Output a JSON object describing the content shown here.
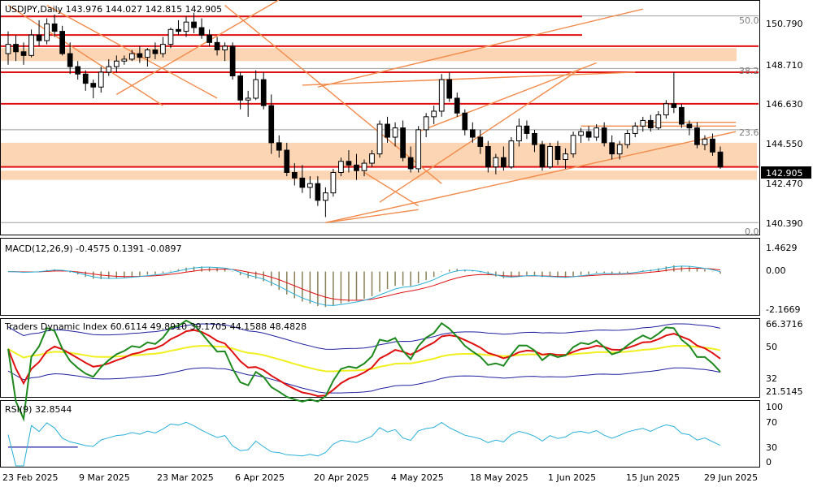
{
  "window": {
    "symbol": "USDJPY",
    "timeframe": "Daily",
    "ohlc": "143.976 144.027 142.815 142.905"
  },
  "chart_data": [
    {
      "type": "candlestick",
      "title": "USDJPY,Daily  143.976 144.027 142.815 142.905",
      "price_ticks": [
        "150.790",
        "148.710",
        "146.630",
        "144.550",
        "142.470",
        "140.390"
      ],
      "current_price": "142.905",
      "ylim": [
        139.3,
        151.8
      ],
      "x_labels": [
        "23 Feb 2025",
        "9 Mar 2025",
        "23 Mar 2025",
        "6 Apr 2025",
        "20 Apr 2025",
        "4 May 2025",
        "18 May 2025",
        "1 Jun 2025",
        "15 Jun 2025",
        "29 Jun 2025"
      ],
      "fib_labels": [
        "50.0",
        "38.2",
        "23.6",
        "0.0"
      ],
      "fib_levels": [
        151.03,
        148.2,
        144.9,
        139.9
      ],
      "support_resistance": [
        151.0,
        150.0,
        149.4,
        148.0,
        146.3,
        142.9
      ],
      "zones": [
        [
          148.6,
          149.3
        ],
        [
          142.9,
          144.2
        ],
        [
          142.2,
          142.7
        ]
      ],
      "candles": [
        [
          149.0,
          150.2,
          148.4,
          149.5
        ],
        [
          149.5,
          150.0,
          148.6,
          149.1
        ],
        [
          149.1,
          149.6,
          148.4,
          148.9
        ],
        [
          148.9,
          150.3,
          148.8,
          150.0
        ],
        [
          150.0,
          150.8,
          149.4,
          149.7
        ],
        [
          149.7,
          150.9,
          149.5,
          150.6
        ],
        [
          150.6,
          151.1,
          149.9,
          150.2
        ],
        [
          150.2,
          150.5,
          148.9,
          149.0
        ],
        [
          149.0,
          149.6,
          147.9,
          148.3
        ],
        [
          148.3,
          148.6,
          147.6,
          147.9
        ],
        [
          147.9,
          148.1,
          147.0,
          147.4
        ],
        [
          147.4,
          147.6,
          146.6,
          147.2
        ],
        [
          147.2,
          148.3,
          146.9,
          148.0
        ],
        [
          148.0,
          148.7,
          147.8,
          148.3
        ],
        [
          148.3,
          148.9,
          148.0,
          148.6
        ],
        [
          148.6,
          148.9,
          148.4,
          148.7
        ],
        [
          148.7,
          149.2,
          148.6,
          149.0
        ],
        [
          149.0,
          149.4,
          148.5,
          148.8
        ],
        [
          148.8,
          149.3,
          148.3,
          149.2
        ],
        [
          149.2,
          149.6,
          148.7,
          149.0
        ],
        [
          149.0,
          149.9,
          148.8,
          149.5
        ],
        [
          149.5,
          150.4,
          149.3,
          150.3
        ],
        [
          150.3,
          150.8,
          150.0,
          150.2
        ],
        [
          150.2,
          151.0,
          149.9,
          150.7
        ],
        [
          150.7,
          151.2,
          150.1,
          150.4
        ],
        [
          150.4,
          150.9,
          149.8,
          150.0
        ],
        [
          150.0,
          150.3,
          149.4,
          149.6
        ],
        [
          149.6,
          149.9,
          148.9,
          149.2
        ],
        [
          149.2,
          149.6,
          148.6,
          149.4
        ],
        [
          149.4,
          149.6,
          147.6,
          147.8
        ],
        [
          147.8,
          148.0,
          146.0,
          146.5
        ],
        [
          146.5,
          147.0,
          145.6,
          146.6
        ],
        [
          146.6,
          148.1,
          146.5,
          147.6
        ],
        [
          147.6,
          148.0,
          146.0,
          146.2
        ],
        [
          146.2,
          146.8,
          143.6,
          144.2
        ],
        [
          144.2,
          144.6,
          143.4,
          143.8
        ],
        [
          143.8,
          144.2,
          142.4,
          142.6
        ],
        [
          142.6,
          143.1,
          141.9,
          142.3
        ],
        [
          142.3,
          143.0,
          141.5,
          141.8
        ],
        [
          141.8,
          142.4,
          141.2,
          142.0
        ],
        [
          142.0,
          142.4,
          140.8,
          141.1
        ],
        [
          141.1,
          141.8,
          140.2,
          141.5
        ],
        [
          141.5,
          142.8,
          141.3,
          142.6
        ],
        [
          142.6,
          143.4,
          142.4,
          143.2
        ],
        [
          143.2,
          143.8,
          142.6,
          143.0
        ],
        [
          143.0,
          143.6,
          142.2,
          142.7
        ],
        [
          142.7,
          143.3,
          142.4,
          143.1
        ],
        [
          143.1,
          143.8,
          142.9,
          143.6
        ],
        [
          143.6,
          145.4,
          143.4,
          145.2
        ],
        [
          145.2,
          145.6,
          144.2,
          144.5
        ],
        [
          144.5,
          145.3,
          144.0,
          145.0
        ],
        [
          145.0,
          145.4,
          143.2,
          143.4
        ],
        [
          143.4,
          144.0,
          142.6,
          142.8
        ],
        [
          142.8,
          145.1,
          142.6,
          144.9
        ],
        [
          144.9,
          145.8,
          144.5,
          145.6
        ],
        [
          145.6,
          146.2,
          145.2,
          145.9
        ],
        [
          145.9,
          147.9,
          145.6,
          147.6
        ],
        [
          147.6,
          148.0,
          146.4,
          146.6
        ],
        [
          146.6,
          146.9,
          145.6,
          145.8
        ],
        [
          145.8,
          146.0,
          144.6,
          144.9
        ],
        [
          144.9,
          145.3,
          144.2,
          144.5
        ],
        [
          144.5,
          144.9,
          143.6,
          144.0
        ],
        [
          144.0,
          144.3,
          142.6,
          142.9
        ],
        [
          142.9,
          143.6,
          142.5,
          143.4
        ],
        [
          143.4,
          144.0,
          142.7,
          142.9
        ],
        [
          142.9,
          144.5,
          142.8,
          144.3
        ],
        [
          144.3,
          145.5,
          144.0,
          145.1
        ],
        [
          145.1,
          145.4,
          144.4,
          144.7
        ],
        [
          144.7,
          144.9,
          143.7,
          144.1
        ],
        [
          144.1,
          144.3,
          142.7,
          142.9
        ],
        [
          142.9,
          144.2,
          142.8,
          144.0
        ],
        [
          144.0,
          144.3,
          143.0,
          143.3
        ],
        [
          143.3,
          143.9,
          142.8,
          143.6
        ],
        [
          143.6,
          144.8,
          143.4,
          144.6
        ],
        [
          144.6,
          145.0,
          144.2,
          144.8
        ],
        [
          144.8,
          145.1,
          144.3,
          144.5
        ],
        [
          144.5,
          145.2,
          144.3,
          145.0
        ],
        [
          145.0,
          145.3,
          144.0,
          144.2
        ],
        [
          144.2,
          144.6,
          143.3,
          143.6
        ],
        [
          143.6,
          144.3,
          143.3,
          144.1
        ],
        [
          144.1,
          144.9,
          143.9,
          144.7
        ],
        [
          144.7,
          145.3,
          144.5,
          145.1
        ],
        [
          145.1,
          145.6,
          144.8,
          145.4
        ],
        [
          145.4,
          145.7,
          144.8,
          145.0
        ],
        [
          145.0,
          145.9,
          144.9,
          145.7
        ],
        [
          145.7,
          146.5,
          145.5,
          146.3
        ],
        [
          146.3,
          148.0,
          145.8,
          146.1
        ],
        [
          146.1,
          146.3,
          145.0,
          145.2
        ],
        [
          145.2,
          145.4,
          144.6,
          145.0
        ],
        [
          145.0,
          145.3,
          143.9,
          144.1
        ],
        [
          144.1,
          144.6,
          143.8,
          144.4
        ],
        [
          144.4,
          144.7,
          143.5,
          143.7
        ],
        [
          143.7,
          144.0,
          142.8,
          142.9
        ]
      ]
    },
    {
      "type": "line",
      "title": "MACD(12,26,9) -0.4575 0.1391 -0.0897",
      "ticks": [
        "1.4629",
        "0.00",
        "-2.1669"
      ],
      "ylim": [
        -2.4,
        1.8
      ]
    },
    {
      "type": "line",
      "title": "Traders Dynamic Index 60.6114 49.8910 39.1705 44.1588 48.4828",
      "ticks": [
        "66.3716",
        "50",
        "32",
        "21.5145"
      ],
      "ylim": [
        20,
        68
      ]
    },
    {
      "type": "line",
      "title": "RSI(9) 32.8544",
      "ticks": [
        "100",
        "70",
        "30",
        "0"
      ],
      "ylim": [
        0,
        100
      ]
    }
  ]
}
